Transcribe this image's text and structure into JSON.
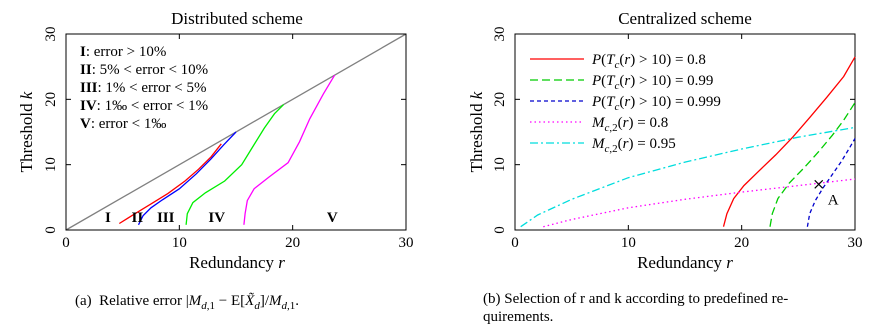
{
  "charts": [
    {
      "title": "Distributed scheme",
      "xlabel_text": "Redundancy",
      "xlabel_var": "r",
      "ylabel_text": "Threshold",
      "ylabel_var": "k",
      "caption": "(a)  Relative error |M_{d,1} − E[X̃_d]/M_{d,1}.",
      "legend": [
        {
          "roman": "I",
          "text": ": error > 10%"
        },
        {
          "roman": "II",
          "text": ": 5% < error < 10%"
        },
        {
          "roman": "III",
          "text": ": 1% < error < 5%"
        },
        {
          "roman": "IV",
          "text": ": 1‰ < error < 1%"
        },
        {
          "roman": "V",
          "text": ": error < 1‰"
        }
      ],
      "region_labels": [
        {
          "label": "I",
          "x": 3.7,
          "y": 1.2
        },
        {
          "label": "II",
          "x": 6.3,
          "y": 1.2
        },
        {
          "label": "III",
          "x": 8.8,
          "y": 1.2
        },
        {
          "label": "IV",
          "x": 13.3,
          "y": 1.2
        },
        {
          "label": "V",
          "x": 23.5,
          "y": 1.2
        }
      ]
    },
    {
      "title": "Centralized scheme",
      "xlabel_text": "Redundancy",
      "xlabel_var": "r",
      "ylabel_text": "Threshold",
      "ylabel_var": "k",
      "caption_line1": "(b)  Selection of r and k according to predefined re-",
      "caption_line2": "quirements.",
      "annotation": {
        "label": "A",
        "x": 26.8,
        "y": 7.0
      },
      "legend": [
        "P(T_c(r) > 10) = 0.8",
        "P(T_c(r) > 10) = 0.99",
        "P(T_c(r) > 10) = 0.999",
        "M_{c,2}(r) = 0.8",
        "M_{c,2}(r) = 0.95"
      ]
    }
  ],
  "chart_data": [
    {
      "type": "line",
      "title": "Distributed scheme",
      "xlabel": "Redundancy r",
      "ylabel": "Threshold k",
      "xlim": [
        0,
        30
      ],
      "ylim": [
        0,
        30
      ],
      "xticks": [
        0,
        10,
        20,
        30
      ],
      "yticks": [
        0,
        10,
        20,
        30
      ],
      "series": [
        {
          "color": "#808080",
          "style": "solid",
          "points": [
            [
              0,
              0
            ],
            [
              30,
              30
            ]
          ]
        },
        {
          "color": "#ff0000",
          "style": "solid",
          "points": [
            [
              4.7,
              1.0
            ],
            [
              6.0,
              2.4
            ],
            [
              7.5,
              4.0
            ],
            [
              9.0,
              5.6
            ],
            [
              10.5,
              7.5
            ],
            [
              11.7,
              9.3
            ],
            [
              12.8,
              11.2
            ],
            [
              13.7,
              13.2
            ]
          ]
        },
        {
          "color": "#0000ff",
          "style": "solid",
          "points": [
            [
              6.4,
              0.8
            ],
            [
              6.8,
              2.2
            ],
            [
              7.5,
              3.4
            ],
            [
              8.5,
              4.6
            ],
            [
              10.0,
              6.3
            ],
            [
              11.5,
              8.6
            ],
            [
              12.8,
              10.9
            ],
            [
              13.9,
              13.0
            ],
            [
              15.0,
              15.0
            ]
          ]
        },
        {
          "color": "#00ee00",
          "style": "solid",
          "points": [
            [
              10.6,
              0.8
            ],
            [
              10.7,
              2.5
            ],
            [
              11.2,
              4.2
            ],
            [
              12.3,
              5.7
            ],
            [
              14.0,
              7.5
            ],
            [
              15.5,
              10.0
            ],
            [
              16.5,
              12.8
            ],
            [
              17.5,
              15.6
            ],
            [
              18.4,
              17.8
            ],
            [
              19.2,
              19.2
            ]
          ]
        },
        {
          "color": "#ff00ff",
          "style": "solid",
          "points": [
            [
              15.7,
              0.8
            ],
            [
              15.8,
              2.5
            ],
            [
              16.0,
              4.5
            ],
            [
              16.6,
              6.3
            ],
            [
              17.9,
              8.1
            ],
            [
              19.6,
              10.3
            ],
            [
              20.6,
              13.5
            ],
            [
              21.5,
              17.0
            ],
            [
              22.7,
              20.8
            ],
            [
              23.7,
              23.7
            ]
          ]
        }
      ],
      "legend_placement": "top-left",
      "grid": false
    },
    {
      "type": "line",
      "title": "Centralized scheme",
      "xlabel": "Redundancy r",
      "ylabel": "Threshold k",
      "xlim": [
        0,
        30
      ],
      "ylim": [
        0,
        30
      ],
      "xticks": [
        0,
        10,
        20,
        30
      ],
      "yticks": [
        0,
        10,
        20,
        30
      ],
      "series": [
        {
          "name": "P(T_c(r) > 10) = 0.8",
          "color": "#ff0000",
          "style": "solid",
          "points": [
            [
              18.4,
              0.5
            ],
            [
              18.7,
              2.5
            ],
            [
              19.3,
              4.8
            ],
            [
              20.2,
              6.8
            ],
            [
              21.5,
              9.0
            ],
            [
              23.0,
              11.5
            ],
            [
              24.5,
              14.2
            ],
            [
              26.0,
              17.2
            ],
            [
              27.5,
              20.3
            ],
            [
              29.0,
              23.5
            ],
            [
              30.0,
              26.5
            ]
          ]
        },
        {
          "name": "P(T_c(r) > 10) = 0.99",
          "color": "#00cc00",
          "style": "dashed",
          "points": [
            [
              22.5,
              0.5
            ],
            [
              22.7,
              2.5
            ],
            [
              23.2,
              4.8
            ],
            [
              24.2,
              7.2
            ],
            [
              25.5,
              9.5
            ],
            [
              26.8,
              12.0
            ],
            [
              28.0,
              14.5
            ],
            [
              29.0,
              16.8
            ],
            [
              30.0,
              19.5
            ]
          ]
        },
        {
          "name": "P(T_c(r) > 10) = 0.999",
          "color": "#0000cc",
          "style": "dashed-fine",
          "points": [
            [
              25.8,
              0.5
            ],
            [
              26.0,
              2.5
            ],
            [
              26.5,
              4.5
            ],
            [
              27.2,
              6.5
            ],
            [
              28.0,
              8.5
            ],
            [
              28.8,
              10.5
            ],
            [
              29.5,
              12.5
            ],
            [
              30.0,
              14.0
            ]
          ]
        },
        {
          "name": "M_{c,2}(r) = 0.8",
          "color": "#ff00ff",
          "style": "dotted",
          "points": [
            [
              2.5,
              0.5
            ],
            [
              5,
              1.6
            ],
            [
              10,
              3.4
            ],
            [
              15,
              4.7
            ],
            [
              20,
              5.8
            ],
            [
              25,
              6.8
            ],
            [
              30,
              7.8
            ]
          ]
        },
        {
          "name": "M_{c,2}(r) = 0.95",
          "color": "#00dddd",
          "style": "dash-dot",
          "points": [
            [
              0.5,
              0.5
            ],
            [
              2,
              2.3
            ],
            [
              5,
              4.7
            ],
            [
              10,
              8.0
            ],
            [
              15,
              10.4
            ],
            [
              20,
              12.4
            ],
            [
              25,
              14.2
            ],
            [
              30,
              15.7
            ]
          ]
        }
      ],
      "legend_placement": "top-left",
      "grid": false
    }
  ]
}
